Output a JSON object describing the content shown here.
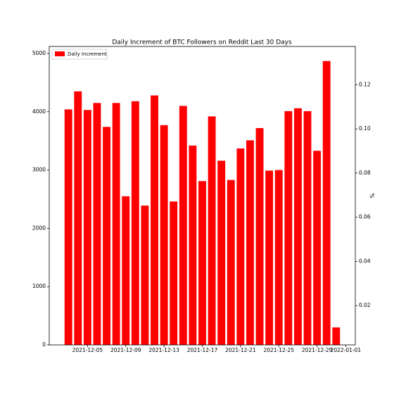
{
  "chart_data": {
    "type": "bar",
    "title": "Daily Increment of BTC Followers on Reddit Last 30 Days",
    "x": [
      "2021-12-03",
      "2021-12-04",
      "2021-12-05",
      "2021-12-06",
      "2021-12-07",
      "2021-12-08",
      "2021-12-09",
      "2021-12-10",
      "2021-12-11",
      "2021-12-12",
      "2021-12-13",
      "2021-12-14",
      "2021-12-15",
      "2021-12-16",
      "2021-12-17",
      "2021-12-18",
      "2021-12-19",
      "2021-12-20",
      "2021-12-21",
      "2021-12-22",
      "2021-12-23",
      "2021-12-24",
      "2021-12-25",
      "2021-12-26",
      "2021-12-27",
      "2021-12-28",
      "2021-12-29",
      "2021-12-30",
      "2021-12-31"
    ],
    "xlim": [
      "2021-12-01",
      "2022-01-02"
    ],
    "xticks": [
      "2021-12-05",
      "2021-12-09",
      "2021-12-13",
      "2021-12-17",
      "2021-12-21",
      "2021-12-25",
      "2021-12-29",
      "2022-01-01"
    ],
    "series": [
      {
        "name": "Daily Increment",
        "color": "#ff0000",
        "values": [
          4040,
          4350,
          4030,
          4150,
          3740,
          4150,
          2550,
          4180,
          2390,
          4280,
          3770,
          2460,
          4100,
          3420,
          2810,
          3920,
          3160,
          2830,
          3370,
          3510,
          3720,
          2990,
          3000,
          4010,
          4060,
          4010,
          3330,
          4870,
          300
        ]
      }
    ],
    "ylim": [
      0,
      5120
    ],
    "yticks": [
      0,
      1000,
      2000,
      3000,
      4000,
      5000
    ],
    "y2label": "%",
    "y2lim": [
      0.0022,
      0.1373
    ],
    "y2ticks": [
      {
        "value": 0.02,
        "label": "0.02"
      },
      {
        "value": 0.04,
        "label": "0.04"
      },
      {
        "value": 0.06,
        "label": "0.06"
      },
      {
        "value": 0.08,
        "label": "0.08"
      },
      {
        "value": 0.1,
        "label": "0.10"
      },
      {
        "value": 0.12,
        "label": "0.12"
      }
    ],
    "legend": "upper left"
  }
}
